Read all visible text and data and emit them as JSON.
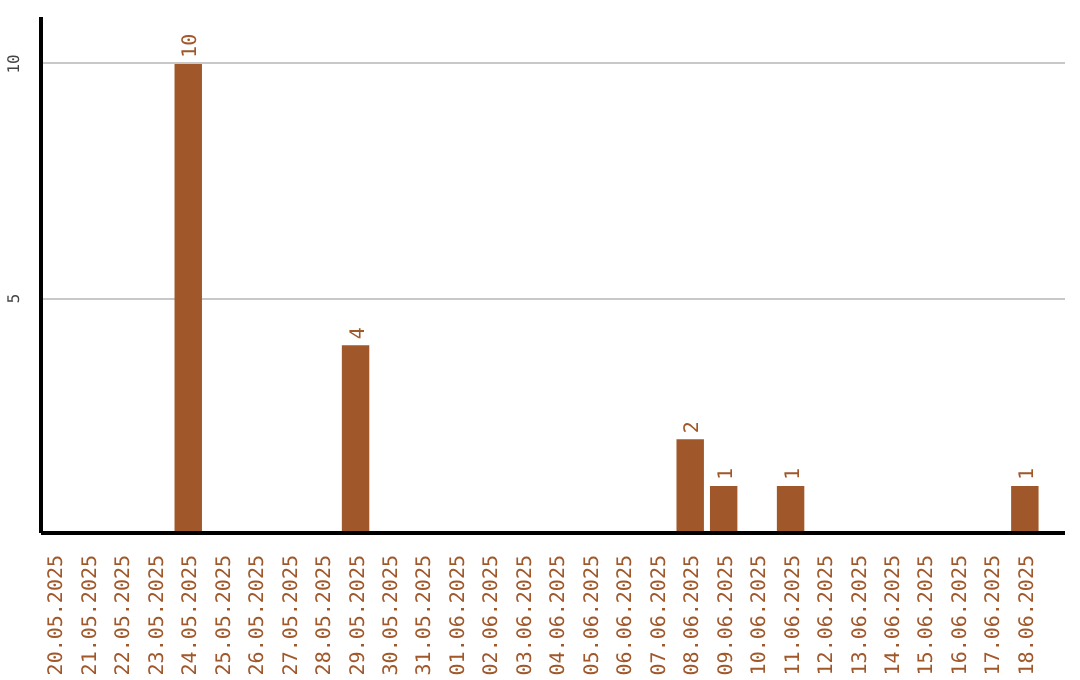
{
  "chart_data": {
    "type": "bar",
    "categories": [
      "20.05.2025",
      "21.05.2025",
      "22.05.2025",
      "23.05.2025",
      "24.05.2025",
      "25.05.2025",
      "26.05.2025",
      "27.05.2025",
      "28.05.2025",
      "29.05.2025",
      "30.05.2025",
      "31.05.2025",
      "01.06.2025",
      "02.06.2025",
      "03.06.2025",
      "04.06.2025",
      "05.06.2025",
      "06.06.2025",
      "07.06.2025",
      "08.06.2025",
      "09.06.2025",
      "10.06.2025",
      "11.06.2025",
      "12.06.2025",
      "13.06.2025",
      "14.06.2025",
      "15.06.2025",
      "16.06.2025",
      "17.06.2025",
      "18.06.2025"
    ],
    "values": [
      0,
      0,
      0,
      0,
      10,
      0,
      0,
      0,
      0,
      4,
      0,
      0,
      0,
      0,
      0,
      0,
      0,
      0,
      0,
      2,
      1,
      0,
      1,
      0,
      0,
      0,
      0,
      0,
      0,
      1
    ],
    "value_labels": [
      null,
      null,
      null,
      null,
      "10",
      null,
      null,
      null,
      null,
      "4",
      null,
      null,
      null,
      null,
      null,
      null,
      null,
      null,
      null,
      "2",
      "1",
      null,
      "1",
      null,
      null,
      null,
      null,
      null,
      null,
      "1"
    ],
    "color": "#a0572a",
    "ylim": [
      0,
      11
    ],
    "yticks": [
      5,
      10
    ],
    "grid": "y"
  }
}
